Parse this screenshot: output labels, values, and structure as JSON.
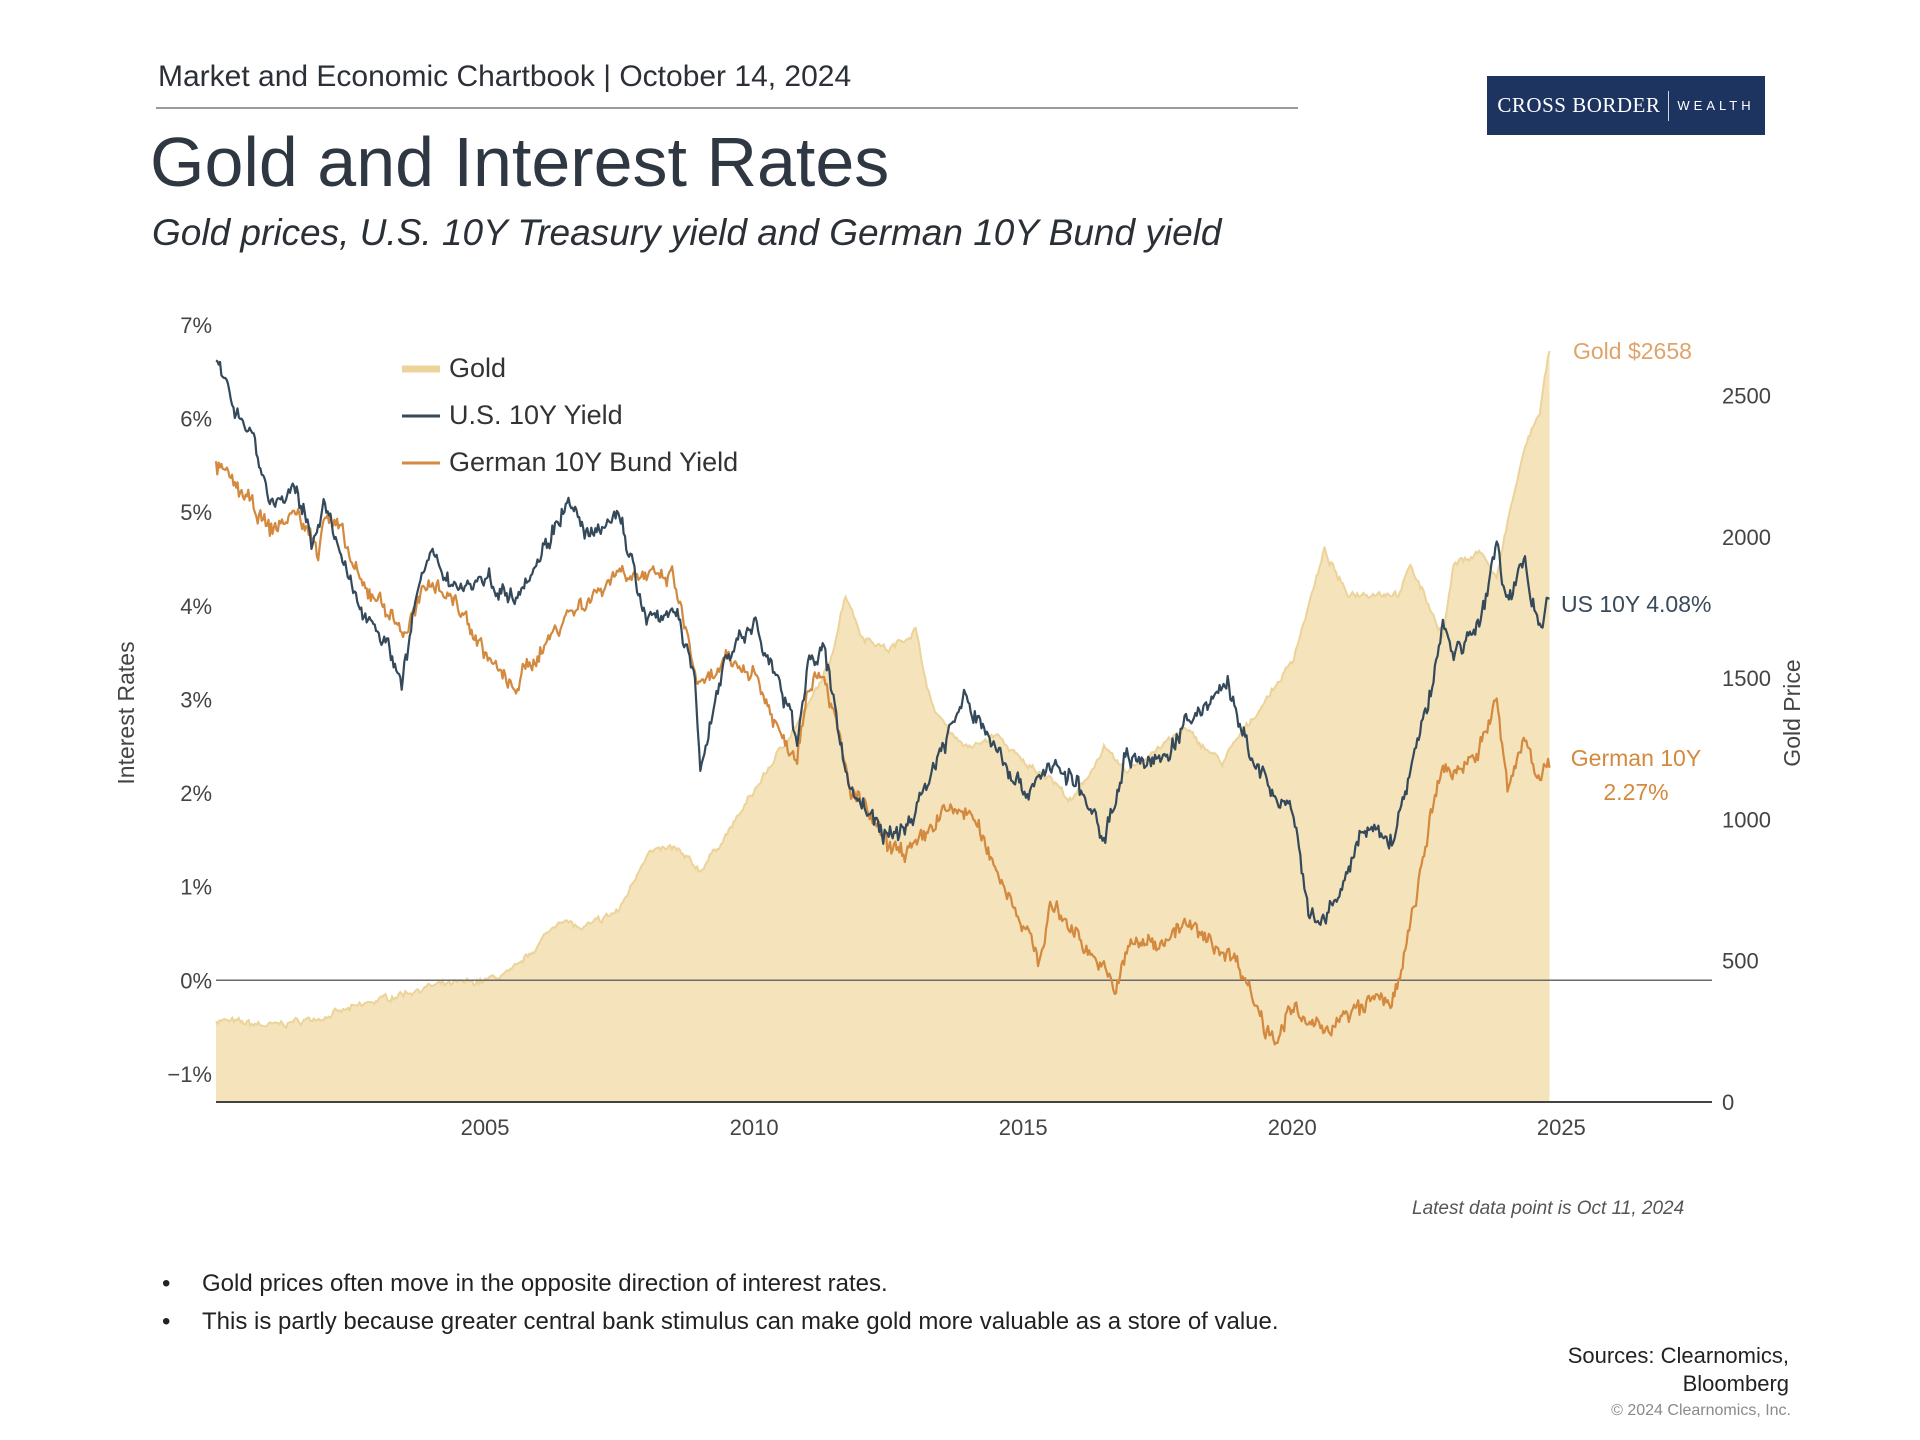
{
  "header": {
    "chartbook_line": "Market and Economic Chartbook | October 14, 2024",
    "logo_brand": "CROSS BORDER",
    "logo_sub": "WEALTH"
  },
  "title": "Gold and Interest Rates",
  "subtitle": "Gold prices, U.S. 10Y Treasury yield and German 10Y Bund yield",
  "colors": {
    "gold_fill": "#f5e3bb",
    "gold_line": "#ecd39a",
    "us_yield": "#34495a",
    "german_yield": "#d3893e",
    "gold_label": "#e0a36a",
    "logo_bg": "#1d3461"
  },
  "chart_data": {
    "type": "line",
    "title": "Gold and Interest Rates",
    "y_left_label": "Interest Rates",
    "y_right_label": "Gold Price",
    "y_left_range": [
      -1.3,
      7
    ],
    "y_right_range": [
      0,
      2750
    ],
    "x_range": [
      2000.0,
      2027.8
    ],
    "y_left_ticks": [
      "7%",
      "6%",
      "5%",
      "4%",
      "3%",
      "2%",
      "1%",
      "0%",
      "−1%"
    ],
    "y_left_tick_values": [
      7,
      6,
      5,
      4,
      3,
      2,
      1,
      0,
      -1
    ],
    "y_right_ticks": [
      "2500",
      "2000",
      "1500",
      "1000",
      "500",
      "0"
    ],
    "y_right_tick_values": [
      2500,
      2000,
      1500,
      1000,
      500,
      0
    ],
    "x_ticks": [
      "2005",
      "2010",
      "2015",
      "2020",
      "2025"
    ],
    "x_tick_values": [
      2005,
      2010,
      2015,
      2020,
      2025
    ],
    "legend": [
      "Gold",
      "U.S. 10Y Yield",
      "German 10Y Bund Yield"
    ],
    "legend_position": "top-left",
    "annotations": {
      "gold": "Gold $2658",
      "us": "US 10Y 4.08%",
      "german_1": "German 10Y",
      "german_2": "2.27%"
    },
    "series": [
      {
        "name": "Gold",
        "axis": "right",
        "x": [
          2000.0,
          2001.0,
          2002.0,
          2003.0,
          2004.0,
          2005.0,
          2005.5,
          2006.0,
          2006.4,
          2006.8,
          2007.5,
          2008.0,
          2008.5,
          2009.0,
          2009.5,
          2010.0,
          2010.5,
          2011.0,
          2011.4,
          2011.7,
          2012.0,
          2012.5,
          2013.0,
          2013.3,
          2013.7,
          2014.0,
          2014.5,
          2015.0,
          2015.5,
          2015.9,
          2016.5,
          2016.9,
          2017.5,
          2018.0,
          2018.7,
          2019.0,
          2019.5,
          2020.0,
          2020.6,
          2021.0,
          2021.5,
          2022.0,
          2022.2,
          2022.8,
          2023.0,
          2023.5,
          2023.8,
          2024.0,
          2024.3,
          2024.6,
          2024.78
        ],
        "y": [
          290,
          270,
          300,
          360,
          410,
          430,
          460,
          560,
          650,
          610,
          680,
          880,
          900,
          820,
          950,
          1100,
          1250,
          1400,
          1550,
          1800,
          1650,
          1600,
          1670,
          1400,
          1300,
          1250,
          1300,
          1200,
          1150,
          1060,
          1250,
          1170,
          1250,
          1320,
          1200,
          1290,
          1420,
          1560,
          1950,
          1800,
          1800,
          1800,
          1900,
          1650,
          1900,
          1950,
          1850,
          2050,
          2300,
          2450,
          2658
        ]
      },
      {
        "name": "U.S. 10Y Yield",
        "axis": "left",
        "x": [
          2000.0,
          2000.3,
          2000.7,
          2001.0,
          2001.5,
          2001.8,
          2002.0,
          2002.5,
          2002.8,
          2003.0,
          2003.45,
          2003.8,
          2004.0,
          2004.5,
          2005.0,
          2005.5,
          2006.0,
          2006.5,
          2007.0,
          2007.5,
          2008.0,
          2008.5,
          2008.9,
          2009.0,
          2009.5,
          2010.0,
          2010.5,
          2010.8,
          2011.0,
          2011.3,
          2011.8,
          2012.0,
          2012.5,
          2012.9,
          2013.5,
          2013.9,
          2014.5,
          2015.0,
          2015.5,
          2016.0,
          2016.5,
          2016.9,
          2017.5,
          2018.0,
          2018.8,
          2019.0,
          2019.6,
          2020.0,
          2020.3,
          2020.6,
          2021.0,
          2021.3,
          2021.9,
          2022.0,
          2022.5,
          2022.8,
          2023.0,
          2023.5,
          2023.8,
          2024.0,
          2024.3,
          2024.6,
          2024.78
        ],
        "y": [
          6.6,
          6.2,
          5.8,
          5.1,
          5.2,
          4.7,
          5.1,
          4.2,
          3.9,
          3.8,
          3.2,
          4.3,
          4.5,
          4.2,
          4.3,
          4.1,
          4.5,
          5.1,
          4.7,
          5.0,
          3.8,
          4.0,
          3.2,
          2.3,
          3.5,
          3.8,
          3.1,
          2.6,
          3.4,
          3.5,
          2.0,
          1.9,
          1.5,
          1.7,
          2.5,
          3.0,
          2.5,
          2.0,
          2.3,
          2.1,
          1.5,
          2.4,
          2.3,
          2.7,
          3.2,
          2.7,
          2.0,
          1.8,
          0.7,
          0.6,
          1.1,
          1.6,
          1.5,
          1.8,
          2.9,
          3.8,
          3.5,
          3.8,
          4.7,
          4.0,
          4.5,
          3.8,
          4.08
        ]
      },
      {
        "name": "German 10Y Bund Yield",
        "axis": "left",
        "x": [
          2000.0,
          2000.5,
          2001.0,
          2001.5,
          2001.9,
          2002.0,
          2002.3,
          2002.7,
          2003.0,
          2003.5,
          2004.0,
          2004.5,
          2005.0,
          2005.5,
          2006.0,
          2006.5,
          2007.0,
          2007.5,
          2008.0,
          2008.5,
          2008.9,
          2009.0,
          2009.5,
          2010.0,
          2010.5,
          2010.8,
          2011.0,
          2011.3,
          2011.8,
          2012.0,
          2012.5,
          2013.0,
          2013.5,
          2014.0,
          2014.5,
          2015.0,
          2015.3,
          2015.5,
          2016.0,
          2016.5,
          2016.7,
          2017.0,
          2017.5,
          2018.0,
          2018.5,
          2019.0,
          2019.5,
          2019.7,
          2020.0,
          2020.3,
          2020.6,
          2021.0,
          2021.5,
          2021.9,
          2022.0,
          2022.3,
          2022.5,
          2022.8,
          2023.0,
          2023.5,
          2023.8,
          2024.0,
          2024.3,
          2024.6,
          2024.78
        ],
        "y": [
          5.5,
          5.2,
          4.8,
          5.0,
          4.6,
          5.0,
          4.8,
          4.2,
          4.1,
          3.7,
          4.3,
          4.0,
          3.5,
          3.1,
          3.5,
          3.9,
          4.1,
          4.4,
          4.3,
          4.3,
          3.3,
          3.1,
          3.4,
          3.3,
          2.6,
          2.4,
          3.2,
          3.3,
          2.0,
          1.9,
          1.4,
          1.4,
          1.8,
          1.8,
          1.2,
          0.6,
          0.2,
          0.8,
          0.5,
          0.1,
          -0.1,
          0.4,
          0.4,
          0.6,
          0.4,
          0.2,
          -0.5,
          -0.6,
          -0.3,
          -0.5,
          -0.5,
          -0.4,
          -0.2,
          -0.2,
          0.0,
          0.9,
          1.5,
          2.3,
          2.2,
          2.5,
          3.0,
          2.0,
          2.6,
          2.2,
          2.27
        ]
      }
    ]
  },
  "footnote": "Latest data point is Oct 11, 2024",
  "bullets": [
    "Gold prices often move in the opposite direction of interest rates.",
    "This is partly because greater central bank stimulus can make gold more valuable as a store of value."
  ],
  "sources_1": "Sources: Clearnomics,",
  "sources_2": "Bloomberg",
  "copyright": "© 2024 Clearnomics, Inc."
}
